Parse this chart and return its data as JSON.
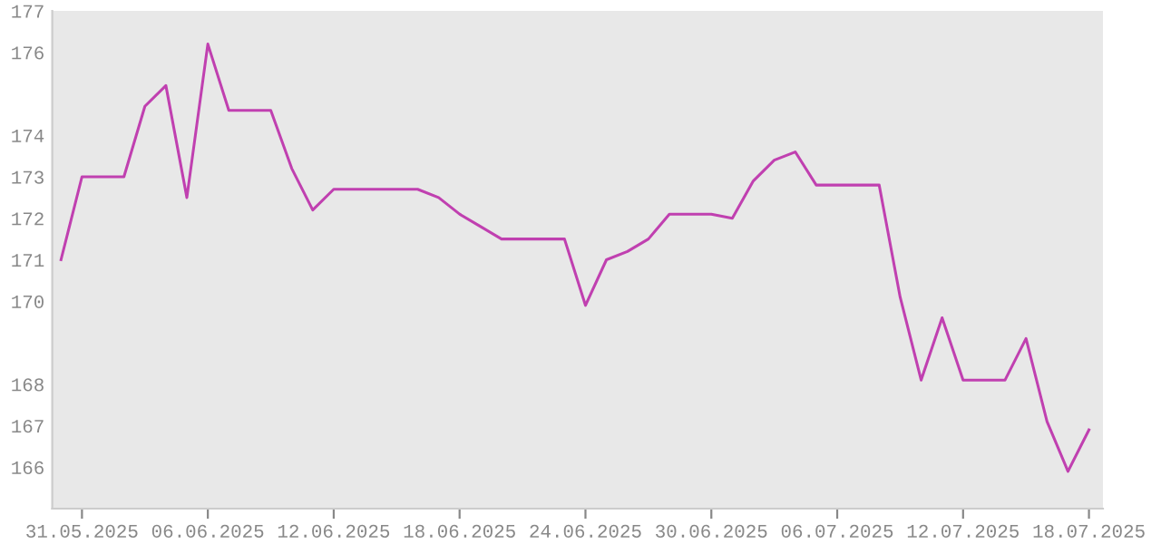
{
  "chart_data": {
    "type": "line",
    "x": [
      "2025-05-30",
      "2025-05-31",
      "2025-06-01",
      "2025-06-02",
      "2025-06-03",
      "2025-06-04",
      "2025-06-05",
      "2025-06-06",
      "2025-06-07",
      "2025-06-08",
      "2025-06-09",
      "2025-06-10",
      "2025-06-11",
      "2025-06-12",
      "2025-06-13",
      "2025-06-14",
      "2025-06-15",
      "2025-06-16",
      "2025-06-17",
      "2025-06-18",
      "2025-06-19",
      "2025-06-20",
      "2025-06-21",
      "2025-06-22",
      "2025-06-23",
      "2025-06-24",
      "2025-06-25",
      "2025-06-26",
      "2025-06-27",
      "2025-06-28",
      "2025-06-29",
      "2025-06-30",
      "2025-07-01",
      "2025-07-02",
      "2025-07-03",
      "2025-07-04",
      "2025-07-05",
      "2025-07-06",
      "2025-07-07",
      "2025-07-08",
      "2025-07-09",
      "2025-07-10",
      "2025-07-11",
      "2025-07-12",
      "2025-07-13",
      "2025-07-14",
      "2025-07-15",
      "2025-07-16",
      "2025-07-17",
      "2025-07-18"
    ],
    "series": [
      {
        "color": "#c040b0",
        "values": [
          171.0,
          173.0,
          173.0,
          173.0,
          174.7,
          175.2,
          172.5,
          176.2,
          174.6,
          174.6,
          174.6,
          173.2,
          172.2,
          172.7,
          172.7,
          172.7,
          172.7,
          172.7,
          172.5,
          172.1,
          171.8,
          171.5,
          171.5,
          171.5,
          171.5,
          169.9,
          171.0,
          171.2,
          171.5,
          172.1,
          172.1,
          172.1,
          172.0,
          172.9,
          173.4,
          173.6,
          172.8,
          172.8,
          172.8,
          172.8,
          170.1,
          168.1,
          169.6,
          168.1,
          168.1,
          168.1,
          169.1,
          167.1,
          165.9,
          166.9
        ]
      }
    ],
    "xlim": [
      "2025-05-29T14:00",
      "2025-07-18T16:00"
    ],
    "xticks": [
      {
        "value": "2025-05-31",
        "label": "31.05.2025"
      },
      {
        "value": "2025-06-06",
        "label": "06.06.2025"
      },
      {
        "value": "2025-06-12",
        "label": "12.06.2025"
      },
      {
        "value": "2025-06-18",
        "label": "18.06.2025"
      },
      {
        "value": "2025-06-24",
        "label": "24.06.2025"
      },
      {
        "value": "2025-06-30",
        "label": "30.06.2025"
      },
      {
        "value": "2025-07-06",
        "label": "06.07.2025"
      },
      {
        "value": "2025-07-12",
        "label": "12.07.2025"
      },
      {
        "value": "2025-07-18",
        "label": "18.07.2025"
      }
    ],
    "ylim": [
      165,
      177
    ],
    "yticks": [
      177,
      176,
      174,
      173,
      172,
      171,
      170,
      168,
      167,
      166
    ],
    "grid": false,
    "legend": false,
    "marker": "none",
    "line_style": "solid"
  }
}
